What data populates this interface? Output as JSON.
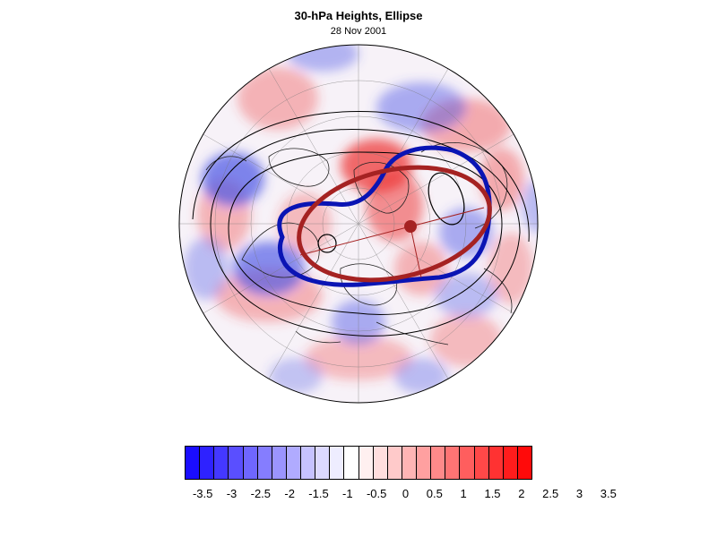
{
  "title": "30-hPa Heights, Ellipse",
  "subtitle": "28 Nov 2001",
  "colorbar": {
    "tick_labels": [
      "-3.5",
      "-3",
      "-2.5",
      "-2",
      "-1.5",
      "-1",
      "-0.5",
      "0",
      "0.5",
      "1",
      "1.5",
      "2",
      "2.5",
      "3",
      "3.5"
    ],
    "colors": [
      "#1a0dff",
      "#2e22ff",
      "#4438ff",
      "#5a4fff",
      "#6f66ff",
      "#857dff",
      "#9b94ff",
      "#b0abff",
      "#c6c2ff",
      "#dcd9ff",
      "#eeedff",
      "#ffffff",
      "#fff0f0",
      "#ffdede",
      "#ffcaca",
      "#ffb5b5",
      "#ffa0a0",
      "#ff8a8a",
      "#ff7474",
      "#ff5e5e",
      "#ff4848",
      "#ff3232",
      "#ff1c1c",
      "#ff0a0a"
    ]
  },
  "map": {
    "projection": "polar-stereographic",
    "anomaly_palette": {
      "negative": "#4a55e6",
      "positive": "#ee3b3b"
    },
    "overlays": {
      "blue_contour": "#0a14b4",
      "red_ellipse": "#a52222",
      "black_contour": "#000000"
    }
  }
}
